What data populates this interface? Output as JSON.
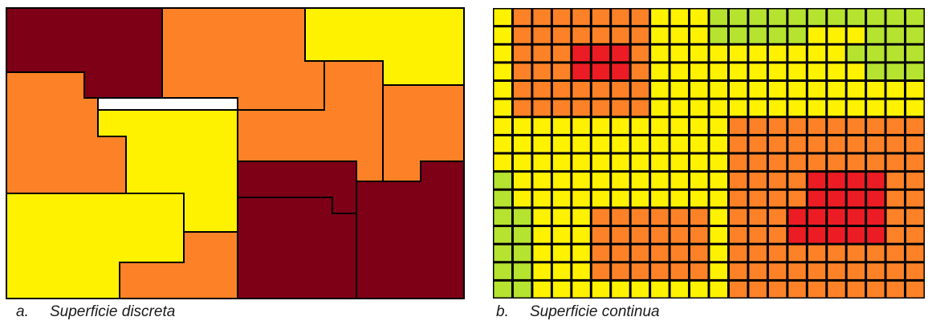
{
  "colors": {
    "dark_red": "#7e0016",
    "orange": "#fd8227",
    "yellow": "#fff200",
    "green": "#b5e32f",
    "red": "#ec1c24",
    "outline": "#000000"
  },
  "panel_a": {
    "letter": "a.",
    "caption": "Superficie discreta"
  },
  "panel_b": {
    "letter": "b.",
    "caption": "Superficie continua",
    "grid_rows": 16,
    "grid_cols": 22,
    "cell_codes": [
      "YOOOOOOOYYYGGGGGGGGGGG",
      "YOOOOOOOYYYGGGGGYYYGGG",
      "YOOORRROYYYYYYYYYYGGGG",
      "YOOORRROYYYYYYYYYYYGGG",
      "YOOOOOOOYYYYYYYYYYYYYY",
      "YOOOOOOOYYYYYYYYYYYYYY",
      "YYYYYYYYYYYYOOOOOOOOOO",
      "YYYYYYYYYYYYOOOOOOOOOO",
      "YYYYYYYYYYYYOOOOOOOOOO",
      "GYYYYYYYYYYYOOOORRRROO",
      "GYYYYYYYYYYYOOOORRRROO",
      "GGYYYOOOOOOYOOORRRRROO",
      "GGYYYOOOOOOYOOORRRRROO",
      "GGYYYOOOOOOYOOOOOOOOOO",
      "GGYYYOOOOOOYOOOOOOOOOO",
      "GGYYYYYYYYYYOOOOOOOOOO"
    ]
  }
}
